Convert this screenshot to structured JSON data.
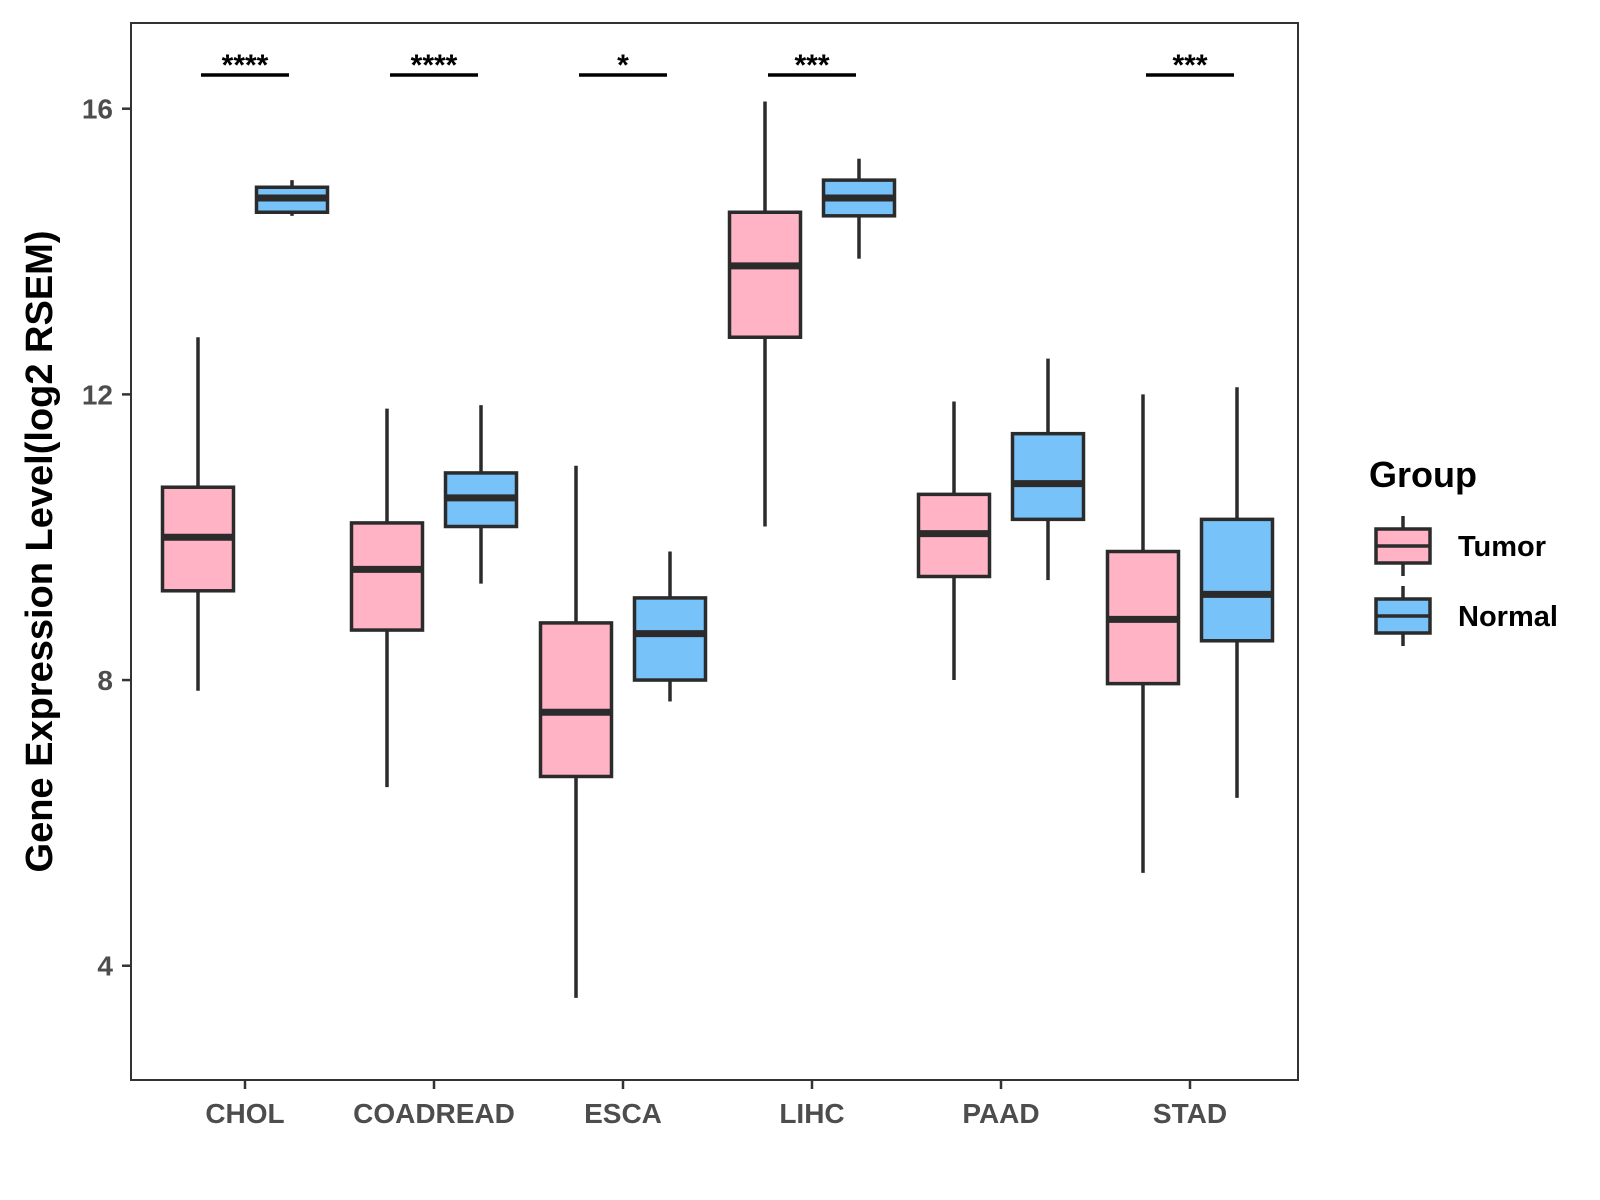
{
  "chart_data": {
    "type": "boxplot",
    "title": "",
    "xlabel": "",
    "ylabel": "Gene Expression Level(log2 RSEM)",
    "ylim": [
      2.4,
      17.2
    ],
    "yticks": [
      4,
      8,
      12,
      16
    ],
    "grid": false,
    "categories": [
      "CHOL",
      "COADREAD",
      "ESCA",
      "LIHC",
      "PAAD",
      "STAD"
    ],
    "legend": {
      "title": "Group",
      "position": "right"
    },
    "series": [
      {
        "name": "Tumor",
        "color": "#FFB3C4",
        "boxes": [
          {
            "min": 7.85,
            "q1": 9.25,
            "median": 10.0,
            "q3": 10.7,
            "max": 12.8
          },
          {
            "min": 6.5,
            "q1": 8.7,
            "median": 9.55,
            "q3": 10.2,
            "max": 11.8
          },
          {
            "min": 3.55,
            "q1": 6.65,
            "median": 7.55,
            "q3": 8.8,
            "max": 11.0
          },
          {
            "min": 10.15,
            "q1": 12.8,
            "median": 13.8,
            "q3": 14.55,
            "max": 16.1
          },
          {
            "min": 8.0,
            "q1": 9.45,
            "median": 10.05,
            "q3": 10.6,
            "max": 11.9
          },
          {
            "min": 5.3,
            "q1": 7.95,
            "median": 8.85,
            "q3": 9.8,
            "max": 12.0
          }
        ]
      },
      {
        "name": "Normal",
        "color": "#77C2F8",
        "boxes": [
          {
            "min": 14.5,
            "q1": 14.55,
            "median": 14.75,
            "q3": 14.9,
            "max": 15.0
          },
          {
            "min": 9.35,
            "q1": 10.15,
            "median": 10.55,
            "q3": 10.9,
            "max": 11.85
          },
          {
            "min": 7.7,
            "q1": 8.0,
            "median": 8.65,
            "q3": 9.15,
            "max": 9.8
          },
          {
            "min": 13.9,
            "q1": 14.5,
            "median": 14.75,
            "q3": 15.0,
            "max": 15.3
          },
          {
            "min": 9.4,
            "q1": 10.25,
            "median": 10.75,
            "q3": 11.45,
            "max": 12.5
          },
          {
            "min": 6.35,
            "q1": 8.55,
            "median": 9.2,
            "q3": 10.25,
            "max": 12.1
          }
        ]
      }
    ],
    "significance": [
      "****",
      "****",
      "*",
      "***",
      "",
      "***"
    ]
  }
}
